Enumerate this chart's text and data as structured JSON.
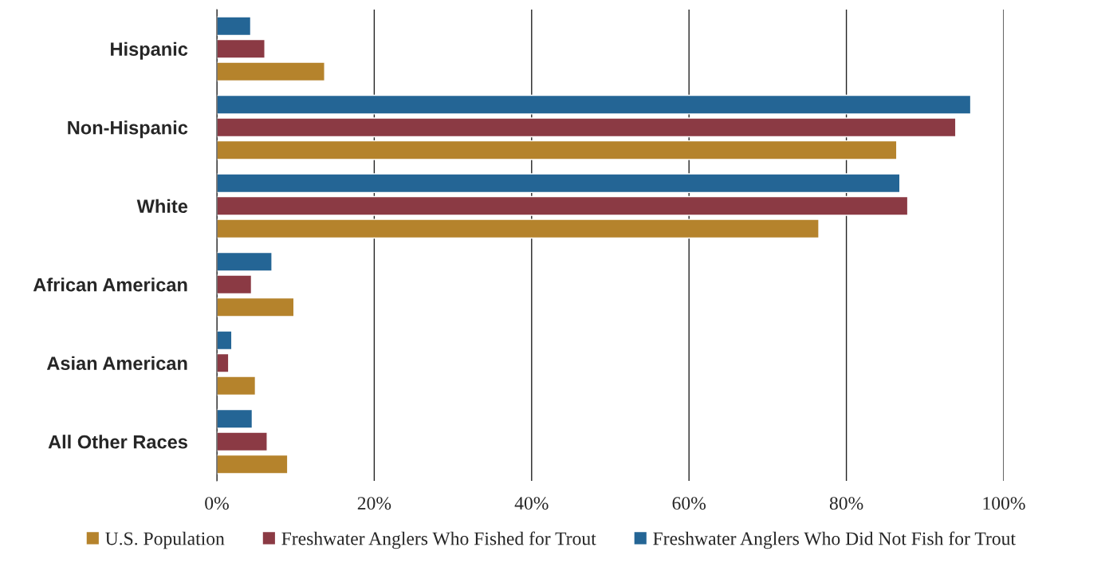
{
  "chart_data": {
    "type": "bar",
    "orientation": "horizontal",
    "categories": [
      "Hispanic",
      "Non-Hispanic",
      "White",
      "African American",
      "Asian American",
      "All Other Races"
    ],
    "series": [
      {
        "name": "U.S. Population",
        "color": "#b5832c",
        "values": [
          13.7,
          86.4,
          76.5,
          9.8,
          4.9,
          9.0
        ]
      },
      {
        "name": "Freshwater Anglers Who Fished for Trout",
        "color": "#8b3a44",
        "values": [
          6.1,
          93.9,
          87.8,
          4.4,
          1.5,
          6.4
        ]
      },
      {
        "name": "Freshwater Anglers Who Did Not Fish for Trout",
        "color": "#246595",
        "values": [
          4.3,
          95.8,
          86.8,
          7.0,
          1.9,
          4.5
        ]
      }
    ],
    "xlim": [
      0,
      100
    ],
    "xticks": [
      {
        "value": 0,
        "label": "0%"
      },
      {
        "value": 20,
        "label": "20%"
      },
      {
        "value": 40,
        "label": "40%"
      },
      {
        "value": 60,
        "label": "60%"
      },
      {
        "value": 80,
        "label": "80%"
      },
      {
        "value": 100,
        "label": "100%"
      }
    ],
    "grid": "x",
    "legend": "bottom"
  }
}
